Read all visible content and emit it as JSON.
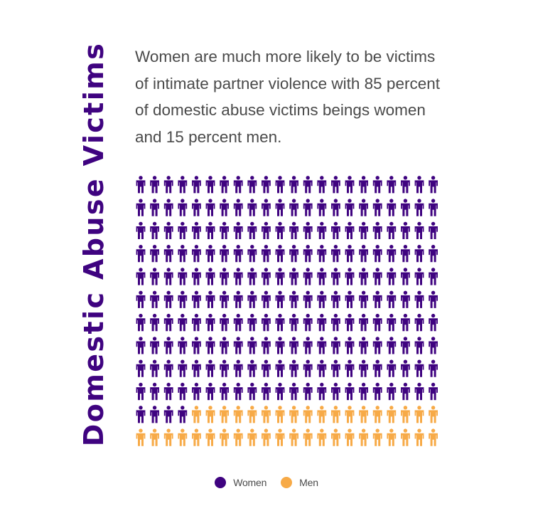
{
  "chart_data": {
    "type": "pictogram",
    "title": "Domestic Abuse Victims",
    "description": "Women are much more likely to be victims of intimate partner violence with 85 percent of domestic abuse victims beings women and 15 percent men.",
    "total_icons": 264,
    "rows": 12,
    "columns": 22,
    "icon": "person-icon",
    "series": [
      {
        "name": "Women",
        "value": 85,
        "unit": "percent",
        "color": "#3f0380"
      },
      {
        "name": "Men",
        "value": 15,
        "unit": "percent",
        "color": "#f7aa47"
      }
    ],
    "legend_position": "bottom-center"
  }
}
